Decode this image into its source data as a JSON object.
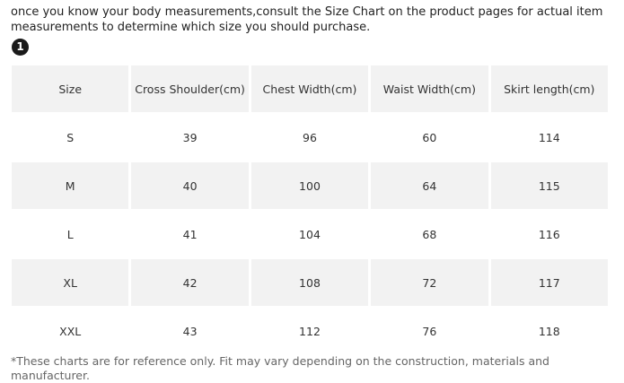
{
  "intro_text": "once you know your body measurements,consult the Size Chart on the product pages for actual item measurements to determine which size you should purchase.",
  "step_number": "1",
  "table": {
    "headers": [
      "Size",
      "Cross Shoulder(cm)",
      "Chest Width(cm)",
      "Waist Width(cm)",
      "Skirt length(cm)"
    ],
    "rows": [
      [
        "S",
        "39",
        "96",
        "60",
        "114"
      ],
      [
        "M",
        "40",
        "100",
        "64",
        "115"
      ],
      [
        "L",
        "41",
        "104",
        "68",
        "116"
      ],
      [
        "XL",
        "42",
        "108",
        "72",
        "117"
      ],
      [
        "XXL",
        "43",
        "112",
        "76",
        "118"
      ]
    ]
  },
  "footnote": "*These charts are for reference only. Fit may vary depending on the construction, materials and manufacturer.",
  "colors": {
    "header_background": "#f2f2f2",
    "shaded_row_background": "#f2f2f2",
    "badge_background": "#1a1a1a"
  }
}
